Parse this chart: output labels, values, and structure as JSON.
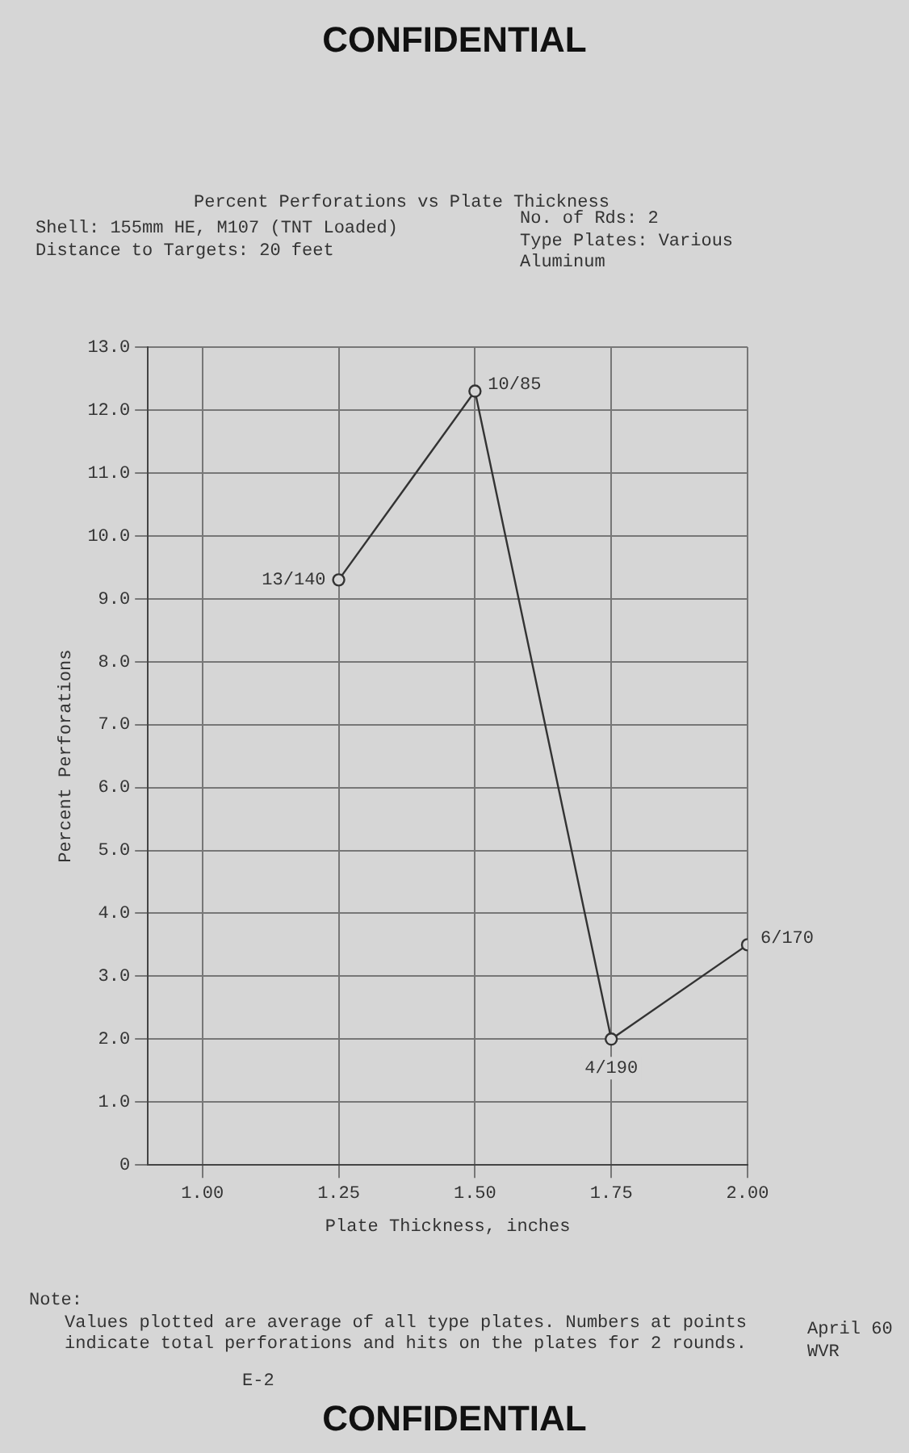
{
  "chart_data": {
    "type": "line",
    "title": "Percent Perforations vs Plate Thickness",
    "xlabel": "Plate Thickness, inches",
    "ylabel": "Percent Perforations",
    "x": [
      1.25,
      1.5,
      1.75,
      2.0
    ],
    "series": [
      {
        "color": "#333333",
        "values": [
          9.3,
          12.3,
          2.0,
          3.5
        ]
      }
    ],
    "xlim": [
      0.9,
      2.0
    ],
    "xticks": [
      {
        "value": 1.0,
        "label": "1.00"
      },
      {
        "value": 1.25,
        "label": "1.25"
      },
      {
        "value": 1.5,
        "label": "1.50"
      },
      {
        "value": 1.75,
        "label": "1.75"
      },
      {
        "value": 2.0,
        "label": "2.00"
      }
    ],
    "ylim": [
      0,
      13
    ],
    "yticks": [
      0,
      {
        "value": 1,
        "label": "1.0"
      },
      {
        "value": 2,
        "label": "2.0"
      },
      {
        "value": 3,
        "label": "3.0"
      },
      {
        "value": 4,
        "label": "4.0"
      },
      {
        "value": 5,
        "label": "5.0"
      },
      {
        "value": 6,
        "label": "6.0"
      },
      {
        "value": 7,
        "label": "7.0"
      },
      {
        "value": 8,
        "label": "8.0"
      },
      {
        "value": 9,
        "label": "9.0"
      },
      {
        "value": 10,
        "label": "10.0"
      },
      {
        "value": 11,
        "label": "11.0"
      },
      {
        "value": 12,
        "label": "12.0"
      },
      {
        "value": 13,
        "label": "13.0"
      }
    ],
    "grid": true,
    "marker": "circle",
    "line_style": "solid",
    "legend": false,
    "annotations": [
      "CONFIDENTIAL",
      "Shell: 155mm HE, M107 (TNT Loaded)",
      "Distance to Targets: 20 feet",
      "No. of Rds: 2",
      "Type Plates: Various Aluminum",
      "Note:",
      "Values plotted are average of all type plates. Numbers at points indicate total perforations and hits on the plates for 2 rounds.",
      "April 60",
      "WVR",
      "E-2",
      "CONFIDENTIAL",
      {
        "text": "13/140",
        "x": 1.25,
        "y": 9.3
      },
      {
        "text": "10/85",
        "x": 1.5,
        "y": 12.3
      },
      {
        "text": "4/190",
        "x": 1.75,
        "y": 2.0
      },
      {
        "text": "6/170",
        "x": 2.0,
        "y": 3.5
      }
    ]
  }
}
